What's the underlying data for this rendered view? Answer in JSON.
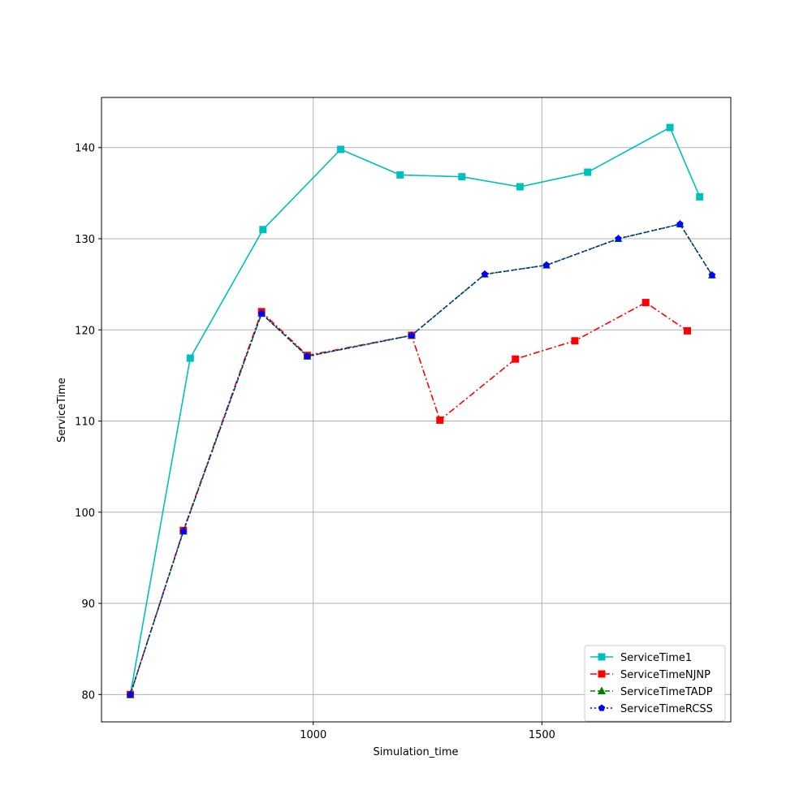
{
  "chart_data": {
    "type": "line",
    "xlabel": "Simulation_time",
    "ylabel": "ServiceTime",
    "xlim": [
      537,
      1913
    ],
    "ylim": [
      77,
      145.5
    ],
    "xticks": [
      1000,
      1500
    ],
    "yticks": [
      80,
      90,
      100,
      110,
      120,
      130,
      140
    ],
    "grid": true,
    "legend_position": "lower right",
    "series": [
      {
        "name": "ServiceTime1",
        "color": "#00bfbf",
        "linestyle": "solid",
        "marker": "square",
        "x": [
          600,
          731,
          890,
          1060,
          1190,
          1325,
          1452,
          1600,
          1780,
          1845
        ],
        "y": [
          80,
          116.9,
          131,
          139.8,
          137,
          136.8,
          135.7,
          137.3,
          142.2,
          134.6
        ]
      },
      {
        "name": "ServiceTimeNJNP",
        "color": "#ff0000",
        "linestyle": "dashdot",
        "marker": "square",
        "x": [
          600,
          716,
          887,
          987,
          1215,
          1277,
          1442,
          1572,
          1727,
          1818
        ],
        "y": [
          80,
          98,
          122,
          117.2,
          119.4,
          110.1,
          116.8,
          118.8,
          123,
          119.9
        ]
      },
      {
        "name": "ServiceTimeTADP",
        "color": "#008000",
        "linestyle": "dashed",
        "marker": "triangle",
        "x": [
          600,
          716,
          887,
          987,
          1215,
          1375,
          1510,
          1667,
          1802,
          1872
        ],
        "y": [
          80,
          97.9,
          121.8,
          117.1,
          119.4,
          126.1,
          127.1,
          130,
          131.6,
          126
        ]
      },
      {
        "name": "ServiceTimeRCSS",
        "color": "#0000ff",
        "linestyle": "dotted",
        "marker": "pentagon",
        "x": [
          600,
          716,
          887,
          987,
          1215,
          1375,
          1510,
          1667,
          1802,
          1872
        ],
        "y": [
          80,
          97.9,
          121.8,
          117.1,
          119.4,
          126.1,
          127.1,
          130,
          131.6,
          126
        ]
      }
    ]
  }
}
